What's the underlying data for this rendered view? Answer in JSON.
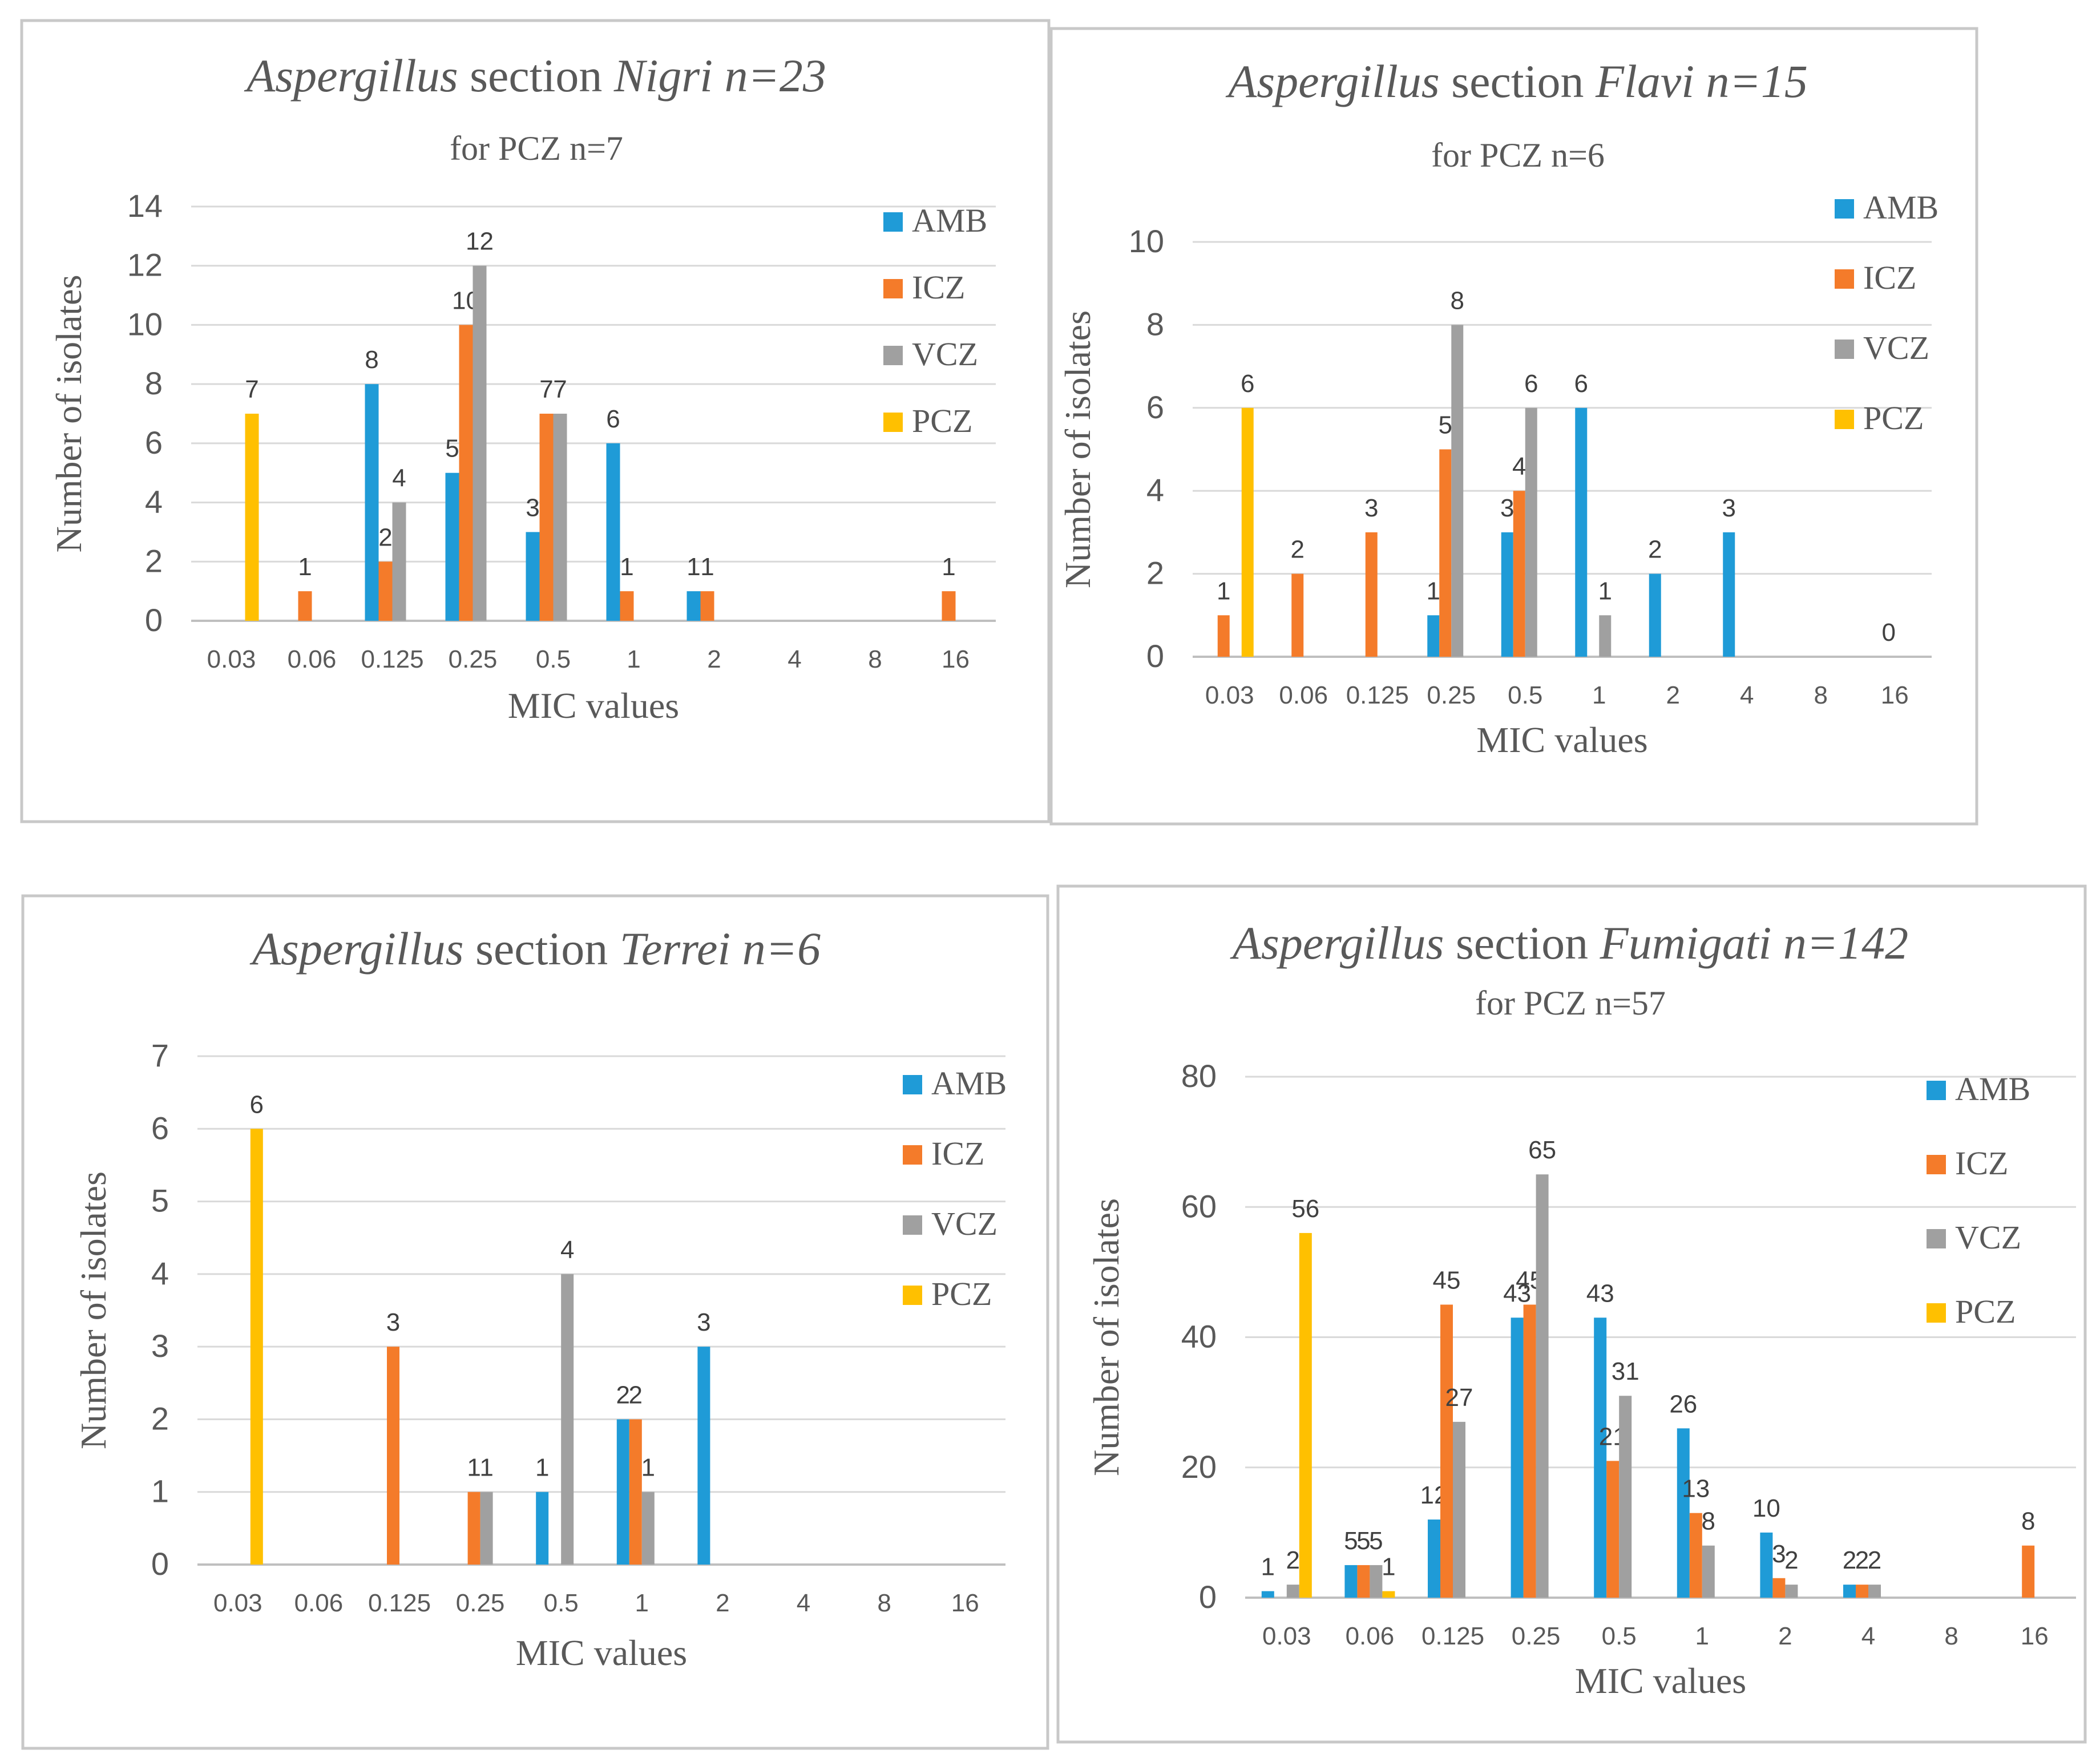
{
  "series_colors": {
    "AMB": "#1F9BD7",
    "ICZ": "#F47B2A",
    "VCZ": "#A0A0A0",
    "PCZ": "#FFC000"
  },
  "chart_data": [
    {
      "type": "bar",
      "title_parts": [
        "Aspergillus",
        " section ",
        "Nigri",
        " n=23"
      ],
      "subtitle": "for PCZ n=7",
      "xlabel": "MIC values",
      "ylabel": "Number of isolates",
      "ylim": [
        0,
        14
      ],
      "yticks": [
        "0",
        "2",
        "4",
        "6",
        "8",
        "10",
        "12",
        "14"
      ],
      "grid": true,
      "legend_position": "right",
      "categories": [
        "0.03",
        "0.06",
        "0.125",
        "0.25",
        "0.5",
        "1",
        "2",
        "4",
        "8",
        "16"
      ],
      "series": [
        {
          "name": "AMB",
          "values": [
            0,
            0,
            8,
            5,
            3,
            6,
            1,
            0,
            0,
            0
          ],
          "labels": [
            "",
            "",
            "8",
            "5",
            "3",
            "6",
            "1",
            "",
            "",
            ""
          ]
        },
        {
          "name": "ICZ",
          "values": [
            0,
            1,
            2,
            10,
            7,
            1,
            1,
            0,
            0,
            1
          ],
          "labels": [
            "",
            "1",
            "2",
            "10",
            "7",
            "1",
            "1",
            "",
            "",
            "1"
          ]
        },
        {
          "name": "VCZ",
          "values": [
            0,
            0,
            4,
            12,
            7,
            0,
            0,
            0,
            0,
            0
          ],
          "labels": [
            "",
            "",
            "4",
            "12",
            "7",
            "",
            "",
            "",
            "",
            ""
          ]
        },
        {
          "name": "PCZ",
          "values": [
            7,
            0,
            0,
            0,
            0,
            0,
            0,
            0,
            0,
            0
          ],
          "labels": [
            "7",
            "",
            "",
            "",
            "",
            "",
            "",
            "",
            "",
            ""
          ]
        }
      ]
    },
    {
      "type": "bar",
      "title_parts": [
        "Aspergillus",
        " section ",
        "Flavi",
        " n=15"
      ],
      "subtitle": "for PCZ n=6",
      "xlabel": "MIC values",
      "ylabel": "Number of isolates",
      "ylim": [
        0,
        10
      ],
      "yticks": [
        "0",
        "2",
        "4",
        "6",
        "8",
        "10"
      ],
      "grid": true,
      "legend_position": "right",
      "categories": [
        "0.03",
        "0.06",
        "0.125",
        "0.25",
        "0.5",
        "1",
        "2",
        "4",
        "8",
        "16"
      ],
      "series": [
        {
          "name": "AMB",
          "values": [
            0,
            0,
            0,
            1,
            3,
            6,
            2,
            3,
            0,
            0
          ],
          "labels": [
            "",
            "",
            "",
            "1",
            "3",
            "6",
            "2",
            "3",
            "",
            ""
          ]
        },
        {
          "name": "ICZ",
          "values": [
            1,
            2,
            3,
            5,
            4,
            0,
            0,
            0,
            0,
            0
          ],
          "labels": [
            "1",
            "2",
            "3",
            "5",
            "4",
            "",
            "",
            "",
            "",
            "0"
          ]
        },
        {
          "name": "VCZ",
          "values": [
            0,
            0,
            0,
            8,
            6,
            1,
            0,
            0,
            0,
            0
          ],
          "labels": [
            "",
            "",
            "",
            "8",
            "6",
            "1",
            "",
            "",
            "",
            ""
          ]
        },
        {
          "name": "PCZ",
          "values": [
            6,
            0,
            0,
            0,
            0,
            0,
            0,
            0,
            0,
            0
          ],
          "labels": [
            "6",
            "",
            "",
            "",
            "",
            "",
            "",
            "",
            "",
            ""
          ]
        }
      ]
    },
    {
      "type": "bar",
      "title_parts": [
        "Aspergillus",
        " section ",
        "Terrei",
        " n=6"
      ],
      "subtitle": "",
      "xlabel": "MIC values",
      "ylabel": "Number of isolates",
      "ylim": [
        0,
        7
      ],
      "yticks": [
        "0",
        "1",
        "2",
        "3",
        "4",
        "5",
        "6",
        "7"
      ],
      "grid": true,
      "legend_position": "right",
      "categories": [
        "0.03",
        "0.06",
        "0.125",
        "0.25",
        "0.5",
        "1",
        "2",
        "4",
        "8",
        "16"
      ],
      "series": [
        {
          "name": "AMB",
          "values": [
            0,
            0,
            0,
            0,
            1,
            2,
            3,
            0,
            0,
            0
          ],
          "labels": [
            "",
            "",
            "",
            "",
            "1",
            "2",
            "3",
            "",
            "",
            ""
          ]
        },
        {
          "name": "ICZ",
          "values": [
            0,
            0,
            3,
            1,
            0,
            2,
            0,
            0,
            0,
            0
          ],
          "labels": [
            "",
            "",
            "3",
            "1",
            "",
            "2",
            "",
            "",
            "",
            ""
          ]
        },
        {
          "name": "VCZ",
          "values": [
            0,
            0,
            0,
            1,
            4,
            1,
            0,
            0,
            0,
            0
          ],
          "labels": [
            "",
            "",
            "",
            "1",
            "4",
            "1",
            "",
            "",
            "",
            ""
          ]
        },
        {
          "name": "PCZ",
          "values": [
            6,
            0,
            0,
            0,
            0,
            0,
            0,
            0,
            0,
            0
          ],
          "labels": [
            "6",
            "",
            "",
            "",
            "",
            "",
            "",
            "",
            "",
            ""
          ]
        }
      ]
    },
    {
      "type": "bar",
      "title_parts": [
        "Aspergillus",
        " section ",
        "Fumigati",
        " n=142"
      ],
      "subtitle": "for PCZ n=57",
      "xlabel": "MIC values",
      "ylabel": "Number of isolates",
      "ylim": [
        0,
        80
      ],
      "yticks": [
        "0",
        "20",
        "40",
        "60",
        "80"
      ],
      "grid": true,
      "legend_position": "right",
      "categories": [
        "0.03",
        "0.06",
        "0.125",
        "0.25",
        "0.5",
        "1",
        "2",
        "4",
        "8",
        "16"
      ],
      "series": [
        {
          "name": "AMB",
          "values": [
            1,
            5,
            12,
            43,
            43,
            26,
            10,
            2,
            0,
            0
          ],
          "labels": [
            "1",
            "5",
            "12",
            "43",
            "43",
            "26",
            "10",
            "2",
            "",
            ""
          ]
        },
        {
          "name": "ICZ",
          "values": [
            0,
            5,
            45,
            45,
            21,
            13,
            3,
            2,
            0,
            8
          ],
          "labels": [
            "",
            "5",
            "45",
            "45",
            "21",
            "13",
            "3",
            "2",
            "",
            "8"
          ]
        },
        {
          "name": "VCZ",
          "values": [
            2,
            5,
            27,
            65,
            31,
            8,
            2,
            2,
            0,
            0
          ],
          "labels": [
            "2",
            "5",
            "27",
            "65",
            "31",
            "8",
            "2",
            "2",
            "",
            ""
          ]
        },
        {
          "name": "PCZ",
          "values": [
            56,
            1,
            0,
            0,
            0,
            0,
            0,
            0,
            0,
            0
          ],
          "labels": [
            "56",
            "1",
            "",
            "",
            "",
            "",
            "",
            "",
            "",
            ""
          ]
        }
      ]
    }
  ]
}
